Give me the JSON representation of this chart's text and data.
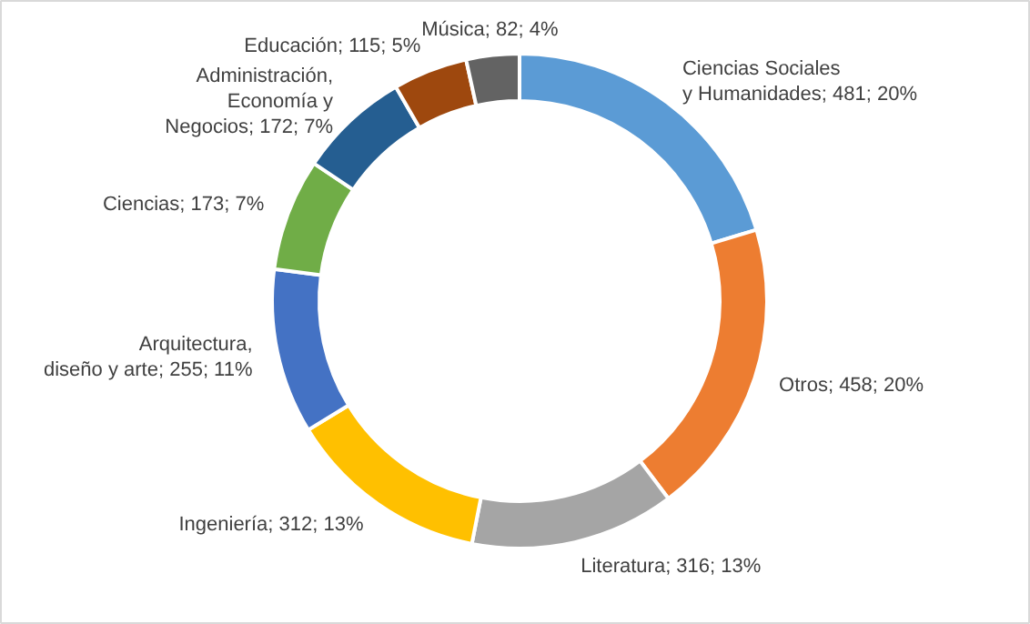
{
  "chart_data": {
    "type": "donut",
    "categories": [
      "Ciencias Sociales y Humanidades",
      "Otros",
      "Literatura",
      "Ingeniería",
      "Arquitectura, diseño y arte",
      "Ciencias",
      "Administración, Economía y Negocios",
      "Educación",
      "Música"
    ],
    "values": [
      481,
      458,
      316,
      312,
      255,
      173,
      172,
      115,
      82
    ],
    "value_labels": [
      "481; 20%",
      "458; 20%",
      "316; 13%",
      "312; 13%",
      "255; 11%",
      "173; 7%",
      "172; 7%",
      "115; 5%",
      "82; 4%"
    ],
    "colors": [
      "#5b9bd5",
      "#ed7d31",
      "#a5a5a5",
      "#ffc000",
      "#4472c4",
      "#70ad47",
      "#255e91",
      "#9e480e",
      "#636363"
    ]
  }
}
